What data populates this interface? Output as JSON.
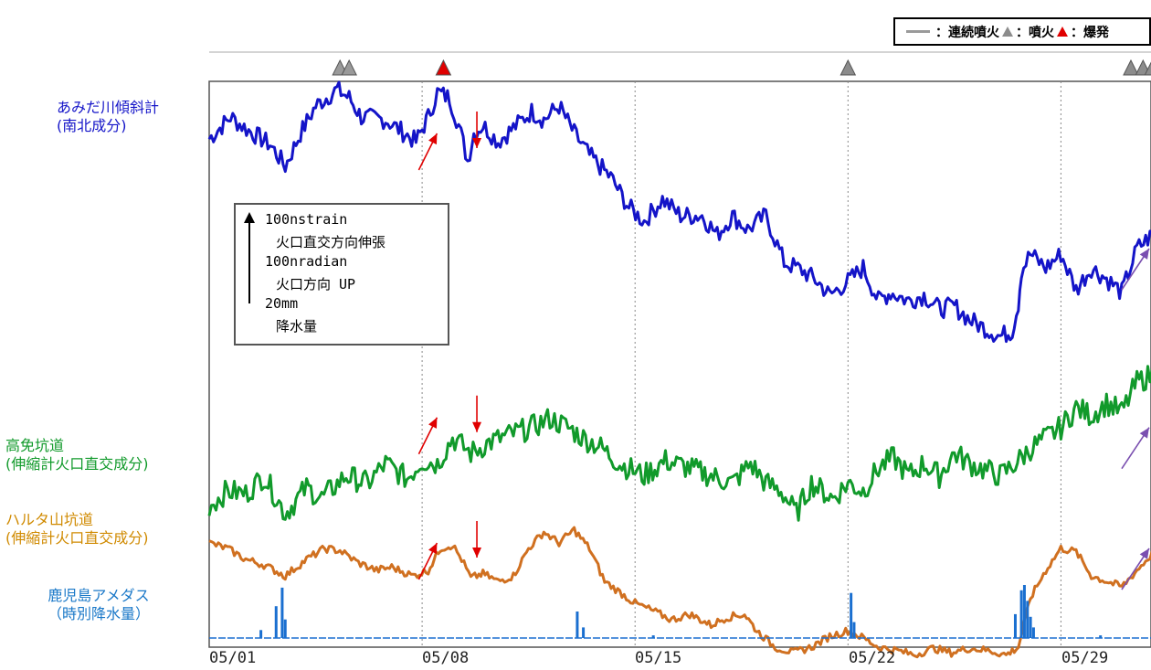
{
  "legend": {
    "continuous_label": "：連続噴火",
    "eruption_label": "：噴火",
    "explosion_label": "：爆発"
  },
  "scale_box": {
    "line1": "100nstrain",
    "line2": "火口直交方向伸張",
    "line3": "100nradian",
    "line4": "火口方向 UP",
    "line5": "20mm",
    "line6": "降水量"
  },
  "labels": {
    "amida_1": "あみだ川傾斜計",
    "amida_2": "(南北成分)",
    "takamen_1": "高免坑道",
    "takamen_2": "(伸縮計火口直交成分)",
    "haruta_1": "ハルタ山坑道",
    "haruta_2": "(伸縮計火口直交成分)",
    "amedas_1": "鹿児島アメダス",
    "amedas_2": "（時別降水量）"
  },
  "colors": {
    "amida": "#1414c8",
    "takamen": "#119a2b",
    "haruta": "#d07020",
    "rain": "#1a6fd0",
    "arrow_red": "#e00000",
    "arrow_purple": "#7a4fb0",
    "continuous": "#9a9a9a",
    "eruption": "#8c8c8c",
    "explosion": "#e00000"
  },
  "chart_data": {
    "type": "line",
    "x_axis": {
      "ticks": [
        "05/01",
        "05/08",
        "05/15",
        "05/22",
        "05/29"
      ],
      "range_days": [
        0,
        31.3
      ]
    },
    "series": [
      {
        "name": "あみだ川傾斜計(南北成分)",
        "points": [
          [
            0,
            0.8
          ],
          [
            0.7,
            0.88
          ],
          [
            1.3,
            0.83
          ],
          [
            2.0,
            0.78
          ],
          [
            2.5,
            0.7
          ],
          [
            3.0,
            0.82
          ],
          [
            3.5,
            0.92
          ],
          [
            4.2,
            0.98
          ],
          [
            4.6,
            0.95
          ],
          [
            5.0,
            0.88
          ],
          [
            5.8,
            0.87
          ],
          [
            6.3,
            0.83
          ],
          [
            6.8,
            0.79
          ],
          [
            7.2,
            0.88
          ],
          [
            7.5,
            0.97
          ],
          [
            7.9,
            0.95
          ],
          [
            8.2,
            0.85
          ],
          [
            8.5,
            0.72
          ],
          [
            8.7,
            0.82
          ],
          [
            9.0,
            0.85
          ],
          [
            9.5,
            0.79
          ],
          [
            10.0,
            0.84
          ],
          [
            10.6,
            0.9
          ],
          [
            11.0,
            0.87
          ],
          [
            11.5,
            0.92
          ],
          [
            12.0,
            0.82
          ],
          [
            12.5,
            0.74
          ],
          [
            13.2,
            0.66
          ],
          [
            13.8,
            0.55
          ],
          [
            14.3,
            0.5
          ],
          [
            14.9,
            0.58
          ],
          [
            15.5,
            0.52
          ],
          [
            16.2,
            0.52
          ],
          [
            16.7,
            0.45
          ],
          [
            17.2,
            0.52
          ],
          [
            17.7,
            0.47
          ],
          [
            18.3,
            0.52
          ],
          [
            18.9,
            0.35
          ],
          [
            19.5,
            0.32
          ],
          [
            20.0,
            0.28
          ],
          [
            20.4,
            0.23
          ],
          [
            21.0,
            0.28
          ],
          [
            21.5,
            0.33
          ],
          [
            22.0,
            0.21
          ],
          [
            22.4,
            0.24
          ],
          [
            23.0,
            0.21
          ],
          [
            23.5,
            0.23
          ],
          [
            24.0,
            0.18
          ],
          [
            24.5,
            0.19
          ],
          [
            25.0,
            0.14
          ],
          [
            25.5,
            0.11
          ],
          [
            26.0,
            0.08
          ],
          [
            26.4,
            0.1
          ],
          [
            26.6,
            0.2
          ],
          [
            26.7,
            0.32
          ],
          [
            27.0,
            0.38
          ],
          [
            27.5,
            0.33
          ],
          [
            28.0,
            0.38
          ],
          [
            28.5,
            0.25
          ],
          [
            29.0,
            0.33
          ],
          [
            29.5,
            0.29
          ],
          [
            30.0,
            0.24
          ],
          [
            30.5,
            0.4
          ],
          [
            31.0,
            0.45
          ],
          [
            31.3,
            0.46
          ]
        ]
      },
      {
        "name": "高免坑道(伸縮計火口直交成分)",
        "points": [
          [
            0,
            0.1
          ],
          [
            0.6,
            0.2
          ],
          [
            1.2,
            0.18
          ],
          [
            1.8,
            0.3
          ],
          [
            2.5,
            0.05
          ],
          [
            3.2,
            0.22
          ],
          [
            3.7,
            0.15
          ],
          [
            4.5,
            0.3
          ],
          [
            5.2,
            0.25
          ],
          [
            5.8,
            0.38
          ],
          [
            6.5,
            0.28
          ],
          [
            7.0,
            0.4
          ],
          [
            7.5,
            0.38
          ],
          [
            8.0,
            0.55
          ],
          [
            8.6,
            0.45
          ],
          [
            9.2,
            0.52
          ],
          [
            10.0,
            0.58
          ],
          [
            10.6,
            0.62
          ],
          [
            11.2,
            0.68
          ],
          [
            11.8,
            0.62
          ],
          [
            12.3,
            0.55
          ],
          [
            12.8,
            0.5
          ],
          [
            13.5,
            0.38
          ],
          [
            14.3,
            0.3
          ],
          [
            15.0,
            0.4
          ],
          [
            15.8,
            0.35
          ],
          [
            16.5,
            0.3
          ],
          [
            17.2,
            0.25
          ],
          [
            17.8,
            0.38
          ],
          [
            18.3,
            0.25
          ],
          [
            18.8,
            0.2
          ],
          [
            19.3,
            0.05
          ],
          [
            19.8,
            0.25
          ],
          [
            20.5,
            0.15
          ],
          [
            21.0,
            0.25
          ],
          [
            21.5,
            0.2
          ],
          [
            22.0,
            0.35
          ],
          [
            22.5,
            0.42
          ],
          [
            23.0,
            0.3
          ],
          [
            23.5,
            0.38
          ],
          [
            24.0,
            0.3
          ],
          [
            24.5,
            0.45
          ],
          [
            25.0,
            0.38
          ],
          [
            25.5,
            0.34
          ],
          [
            26.0,
            0.3
          ],
          [
            26.5,
            0.38
          ],
          [
            27.0,
            0.48
          ],
          [
            27.5,
            0.55
          ],
          [
            28.0,
            0.62
          ],
          [
            28.5,
            0.75
          ],
          [
            29.0,
            0.7
          ],
          [
            29.5,
            0.78
          ],
          [
            30.0,
            0.72
          ],
          [
            30.5,
            0.92
          ],
          [
            31.0,
            0.97
          ],
          [
            31.3,
            1.0
          ]
        ]
      },
      {
        "name": "ハルタ山坑道(伸縮計火口直交成分)",
        "points": [
          [
            0,
            0.6
          ],
          [
            0.6,
            0.55
          ],
          [
            1.2,
            0.45
          ],
          [
            1.8,
            0.4
          ],
          [
            2.5,
            0.3
          ],
          [
            3.2,
            0.45
          ],
          [
            3.8,
            0.55
          ],
          [
            4.3,
            0.53
          ],
          [
            4.9,
            0.42
          ],
          [
            5.5,
            0.35
          ],
          [
            6.0,
            0.38
          ],
          [
            6.7,
            0.3
          ],
          [
            7.2,
            0.35
          ],
          [
            7.6,
            0.55
          ],
          [
            8.0,
            0.58
          ],
          [
            8.3,
            0.45
          ],
          [
            8.6,
            0.28
          ],
          [
            9.0,
            0.32
          ],
          [
            9.5,
            0.25
          ],
          [
            10.0,
            0.3
          ],
          [
            10.5,
            0.55
          ],
          [
            11.0,
            0.7
          ],
          [
            11.5,
            0.6
          ],
          [
            12.0,
            0.72
          ],
          [
            12.5,
            0.55
          ],
          [
            13.0,
            0.25
          ],
          [
            13.5,
            0.15
          ],
          [
            14.0,
            0.05
          ],
          [
            14.6,
            -0.02
          ],
          [
            15.2,
            -0.1
          ],
          [
            15.8,
            -0.05
          ],
          [
            16.5,
            -0.15
          ],
          [
            17.0,
            -0.08
          ],
          [
            17.6,
            -0.05
          ],
          [
            18.0,
            -0.2
          ],
          [
            18.6,
            -0.35
          ],
          [
            19.2,
            -0.4
          ],
          [
            19.8,
            -0.35
          ],
          [
            20.4,
            -0.25
          ],
          [
            21.0,
            -0.2
          ],
          [
            21.6,
            -0.28
          ],
          [
            22.0,
            -0.35
          ],
          [
            22.6,
            -0.38
          ],
          [
            23.2,
            -0.42
          ],
          [
            23.8,
            -0.36
          ],
          [
            24.4,
            -0.4
          ],
          [
            25.0,
            -0.36
          ],
          [
            25.6,
            -0.38
          ],
          [
            26.2,
            -0.42
          ],
          [
            26.6,
            -0.35
          ],
          [
            27.0,
            0.1
          ],
          [
            27.5,
            0.35
          ],
          [
            28.0,
            0.55
          ],
          [
            28.5,
            0.52
          ],
          [
            29.0,
            0.3
          ],
          [
            29.5,
            0.25
          ],
          [
            30.0,
            0.2
          ],
          [
            30.5,
            0.35
          ],
          [
            31.0,
            0.5
          ],
          [
            31.3,
            0.55
          ]
        ]
      },
      {
        "name": "鹿児島アメダス（時別降水量）",
        "spikes": [
          [
            1.7,
            0.15
          ],
          [
            2.2,
            0.6
          ],
          [
            2.4,
            0.95
          ],
          [
            2.5,
            0.35
          ],
          [
            12.1,
            0.5
          ],
          [
            12.3,
            0.2
          ],
          [
            14.6,
            0.05
          ],
          [
            21.1,
            0.85
          ],
          [
            21.2,
            0.3
          ],
          [
            26.5,
            0.45
          ],
          [
            26.7,
            0.9
          ],
          [
            26.8,
            1.0
          ],
          [
            26.9,
            0.7
          ],
          [
            27.0,
            0.4
          ],
          [
            27.1,
            0.2
          ],
          [
            29.3,
            0.05
          ]
        ]
      }
    ],
    "events": {
      "continuous_days": [
        4.3,
        4.6
      ],
      "explosion_days": [
        7.7
      ],
      "eruption_days": [
        21.0,
        30.3,
        30.7,
        31.0,
        31.3
      ]
    },
    "change_arrows": {
      "red_up_days": [
        7.4
      ],
      "red_down_days": [
        8.8
      ],
      "purple_up_days": [
        30.9
      ]
    },
    "grid": "vertical dotted at weekly ticks"
  }
}
